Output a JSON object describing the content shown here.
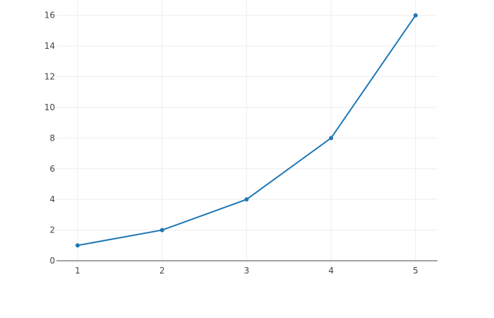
{
  "chart_data": {
    "type": "line",
    "title": "",
    "xlabel": "",
    "ylabel": "",
    "x": [
      1,
      2,
      3,
      4,
      5
    ],
    "series": [
      {
        "values": [
          1,
          2,
          4,
          8,
          16
        ],
        "color": "#1f77b4",
        "mode": "lines+markers"
      }
    ],
    "xlim": [
      0.75,
      5.26
    ],
    "ylim": [
      0,
      17.0
    ],
    "xticks": [
      "1",
      "2",
      "3",
      "4",
      "5"
    ],
    "yticks": [
      "0",
      "2",
      "4",
      "6",
      "8",
      "10",
      "12",
      "14",
      "16"
    ],
    "grid": true,
    "grid_color": "#eeeeee",
    "axis_color": "#444444"
  }
}
